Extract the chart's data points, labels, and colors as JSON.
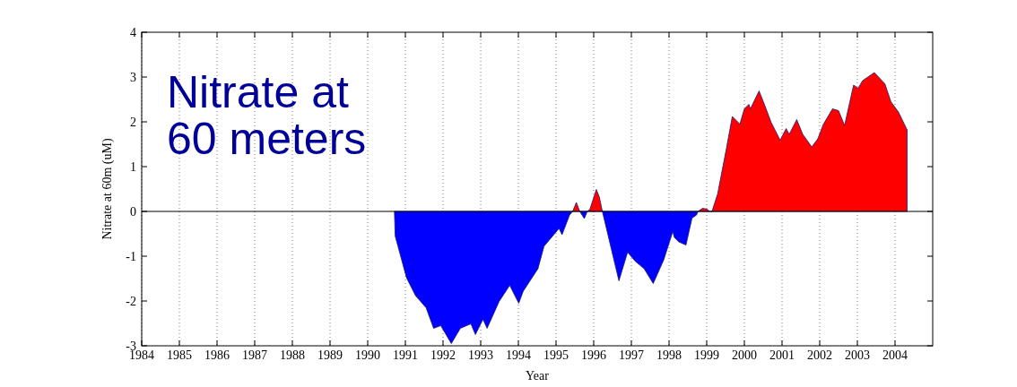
{
  "chart_data": {
    "type": "area",
    "xlabel": "Year",
    "ylabel": "Nitrate at 60m (uM)",
    "annotations": [
      "Nitrate at\n60 meters"
    ],
    "x": [
      1990.71,
      1990.73,
      1991.03,
      1991.27,
      1991.55,
      1991.75,
      1991.94,
      1992.22,
      1992.46,
      1992.74,
      1992.86,
      1993.06,
      1993.17,
      1993.49,
      1993.77,
      1994.01,
      1994.13,
      1994.52,
      1994.68,
      1995.08,
      1995.16,
      1995.36,
      1995.44,
      1995.54,
      1995.63,
      1995.75,
      1995.83,
      1995.9,
      1996.07,
      1996.15,
      1996.23,
      1996.67,
      1996.9,
      1997.1,
      1997.34,
      1997.58,
      1997.86,
      1998.1,
      1998.14,
      1998.26,
      1998.45,
      1998.61,
      1998.73,
      1998.77,
      1998.89,
      1999.01,
      1999.08,
      1999.14,
      1999.29,
      1999.52,
      1999.68,
      1999.88,
      2000.0,
      2000.12,
      2000.16,
      2000.39,
      2000.55,
      2000.71,
      2000.95,
      2001.11,
      2001.19,
      2001.39,
      2001.55,
      2001.79,
      2001.95,
      2002.1,
      2002.34,
      2002.5,
      2002.66,
      2002.9,
      2003.02,
      2003.14,
      2003.45,
      2003.73,
      2003.89,
      2004.09,
      2004.32
    ],
    "series": [
      {
        "color": "#ff0000",
        "values": [
          null,
          null,
          null,
          null,
          null,
          null,
          null,
          null,
          null,
          null,
          null,
          null,
          null,
          null,
          null,
          null,
          null,
          null,
          null,
          null,
          null,
          null,
          0,
          0.2,
          0,
          null,
          0,
          0.05,
          0.49,
          0.32,
          0,
          null,
          null,
          null,
          null,
          null,
          null,
          null,
          null,
          null,
          null,
          null,
          null,
          0,
          0.07,
          0.05,
          0,
          0,
          0.39,
          1.39,
          2.12,
          1.95,
          2.29,
          2.39,
          2.29,
          2.69,
          2.35,
          1.99,
          1.59,
          1.85,
          1.72,
          2.05,
          1.72,
          1.44,
          1.62,
          1.95,
          2.29,
          2.25,
          1.92,
          2.82,
          2.75,
          2.92,
          3.1,
          2.85,
          2.45,
          2.22,
          1.82
        ]
      },
      {
        "color": "#0000ff",
        "values": [
          0,
          -0.55,
          -1.48,
          -1.88,
          -2.15,
          -2.61,
          -2.55,
          -2.95,
          -2.61,
          -2.51,
          -2.75,
          -2.41,
          -2.61,
          -2.01,
          -1.65,
          -2.05,
          -1.78,
          -1.28,
          -0.78,
          -0.38,
          -0.52,
          -0.08,
          0,
          null,
          0,
          -0.16,
          0,
          null,
          null,
          null,
          0,
          -1.55,
          -0.91,
          -1.11,
          -1.28,
          -1.61,
          -1.08,
          -0.45,
          -0.58,
          -0.68,
          -0.75,
          -0.15,
          -0.08,
          0,
          null,
          null,
          null,
          null,
          null,
          null,
          null,
          null,
          null,
          null,
          null,
          null,
          null,
          null,
          null,
          null,
          null,
          null,
          null,
          null,
          null,
          null,
          null,
          null,
          null,
          null,
          null,
          null,
          null,
          null,
          null,
          null,
          null
        ]
      }
    ],
    "xlim": [
      1984,
      2005
    ],
    "ylim": [
      -3,
      4
    ],
    "xticks": [
      1984,
      1985,
      1986,
      1987,
      1988,
      1989,
      1990,
      1991,
      1992,
      1993,
      1994,
      1995,
      1996,
      1997,
      1998,
      1999,
      2000,
      2001,
      2002,
      2003,
      2004
    ],
    "yticks": [
      -3,
      -2,
      -1,
      0,
      1,
      2,
      3,
      4
    ],
    "grid": "x",
    "ref_lines": [
      {
        "axis": "y",
        "value": 0,
        "color": "#000000"
      }
    ]
  }
}
